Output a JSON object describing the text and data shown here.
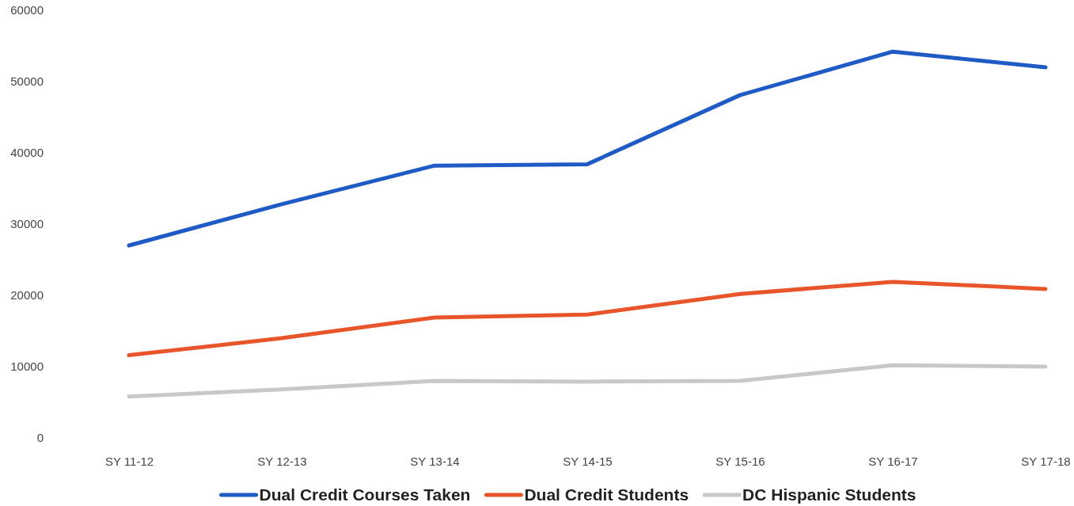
{
  "chart_data": {
    "type": "line",
    "categories": [
      "SY 11-12",
      "SY 12-13",
      "SY 13-14",
      "SY 14-15",
      "SY 15-16",
      "SY 16-17",
      "SY 17-18"
    ],
    "series": [
      {
        "name": "Dual Credit Courses Taken",
        "color": "#1f5bc4",
        "values": [
          27000,
          32800,
          38200,
          38400,
          48100,
          54200,
          52000
        ]
      },
      {
        "name": "Dual Credit Students",
        "color": "#e8552a",
        "values": [
          11600,
          14000,
          16900,
          17300,
          20200,
          21900,
          20900
        ]
      },
      {
        "name": "DC Hispanic Students",
        "color": "#c8c8c8",
        "values": [
          5800,
          6800,
          8000,
          7900,
          8000,
          10200,
          10000
        ]
      }
    ],
    "ylim": [
      0,
      60000
    ],
    "yticks": [
      0,
      10000,
      20000,
      30000,
      40000,
      50000,
      60000
    ],
    "grid": false,
    "legend": "bottom",
    "marker": "none",
    "line_style": "solid"
  }
}
